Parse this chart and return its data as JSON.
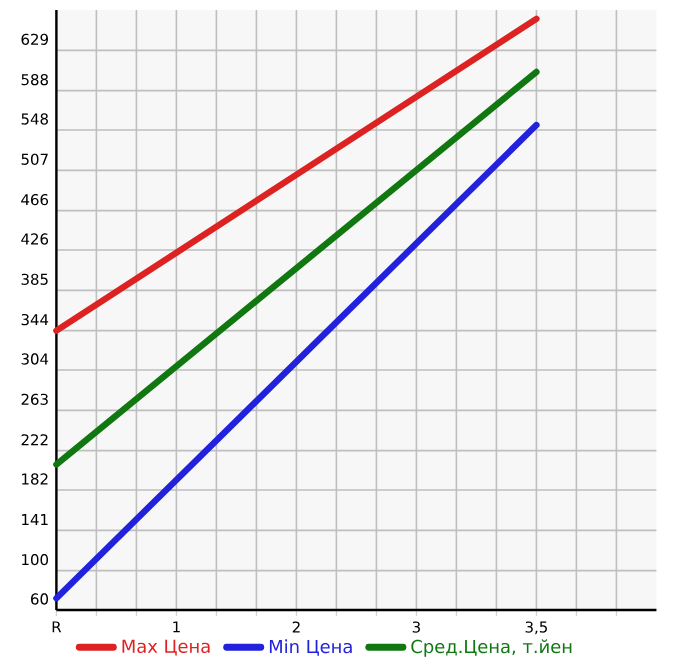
{
  "chart_data": {
    "type": "line",
    "categories": [
      "R",
      "1",
      "2",
      "3",
      "3,5"
    ],
    "series": [
      {
        "name": "Max Цена",
        "color": "#dd2222",
        "values": [
          344,
          null,
          null,
          null,
          661
        ]
      },
      {
        "name": "Min Цена",
        "color": "#2222dd",
        "values": [
          72,
          null,
          null,
          null,
          553
        ]
      },
      {
        "name": "Сред.Цена, т.йен",
        "color": "#117711",
        "values": [
          208,
          null,
          null,
          null,
          607
        ]
      }
    ],
    "ylim": [
      60,
      670
    ],
    "yticks": [
      60,
      100,
      141,
      182,
      222,
      263,
      304,
      344,
      385,
      426,
      466,
      507,
      548,
      588,
      629
    ],
    "grid": true,
    "legend": "bottom",
    "marker": "none",
    "line_style": "solid"
  }
}
